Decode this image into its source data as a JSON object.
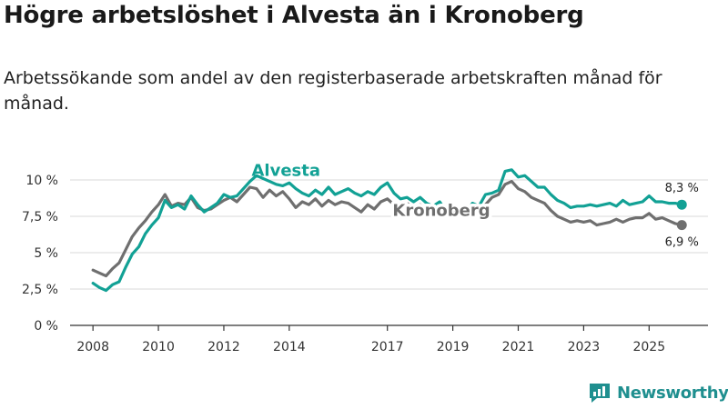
{
  "title": "Högre arbetslöshet i Alvesta än i Kronoberg",
  "subtitle": "Arbetssökande som andel av den registerbaserade arbetskraften månad för månad.",
  "brand": "Newsworthy",
  "colors": {
    "alvesta": "#12a195",
    "kronoberg": "#6f6f6f",
    "grid": "#d9d9d9",
    "axis": "#333333",
    "brand": "#1f8f8f"
  },
  "chart_data": {
    "type": "line",
    "title": "Högre arbetslöshet i Alvesta än i Kronoberg",
    "xlabel": "",
    "ylabel": "",
    "xlim": [
      2007.3,
      2026.8
    ],
    "ylim": [
      0,
      10
    ],
    "y_ticks": [
      0,
      2.5,
      5,
      7.5,
      10
    ],
    "y_tick_labels": [
      "0 %",
      "2,5 %",
      "5 %",
      "7,5 %",
      "10 %"
    ],
    "x_ticks": [
      2008,
      2010,
      2012,
      2014,
      2017,
      2019,
      2021,
      2023,
      2025
    ],
    "x_tick_labels": [
      "2008",
      "2010",
      "2012",
      "2014",
      "2017",
      "2019",
      "2021",
      "2023",
      "2025"
    ],
    "grid": true,
    "series": [
      {
        "name": "Alvesta",
        "end_label": "8,3 %",
        "points": [
          [
            2008.0,
            2.9
          ],
          [
            2008.2,
            2.6
          ],
          [
            2008.4,
            2.4
          ],
          [
            2008.6,
            2.8
          ],
          [
            2008.8,
            3.0
          ],
          [
            2009.0,
            4.0
          ],
          [
            2009.2,
            4.9
          ],
          [
            2009.4,
            5.4
          ],
          [
            2009.6,
            6.3
          ],
          [
            2009.8,
            6.9
          ],
          [
            2010.0,
            7.4
          ],
          [
            2010.2,
            8.6
          ],
          [
            2010.4,
            8.1
          ],
          [
            2010.6,
            8.3
          ],
          [
            2010.8,
            8.0
          ],
          [
            2011.0,
            8.9
          ],
          [
            2011.2,
            8.3
          ],
          [
            2011.4,
            7.8
          ],
          [
            2011.6,
            8.1
          ],
          [
            2011.8,
            8.4
          ],
          [
            2012.0,
            9.0
          ],
          [
            2012.2,
            8.8
          ],
          [
            2012.4,
            8.9
          ],
          [
            2012.6,
            9.4
          ],
          [
            2012.8,
            9.9
          ],
          [
            2013.0,
            10.3
          ],
          [
            2013.2,
            10.1
          ],
          [
            2013.4,
            9.9
          ],
          [
            2013.6,
            9.7
          ],
          [
            2013.8,
            9.6
          ],
          [
            2014.0,
            9.8
          ],
          [
            2014.2,
            9.4
          ],
          [
            2014.4,
            9.1
          ],
          [
            2014.6,
            8.9
          ],
          [
            2014.8,
            9.3
          ],
          [
            2015.0,
            9.0
          ],
          [
            2015.2,
            9.5
          ],
          [
            2015.4,
            9.0
          ],
          [
            2015.6,
            9.2
          ],
          [
            2015.8,
            9.4
          ],
          [
            2016.0,
            9.1
          ],
          [
            2016.2,
            8.9
          ],
          [
            2016.4,
            9.2
          ],
          [
            2016.6,
            9.0
          ],
          [
            2016.8,
            9.5
          ],
          [
            2017.0,
            9.8
          ],
          [
            2017.2,
            9.1
          ],
          [
            2017.4,
            8.7
          ],
          [
            2017.6,
            8.8
          ],
          [
            2017.8,
            8.5
          ],
          [
            2018.0,
            8.8
          ],
          [
            2018.2,
            8.4
          ],
          [
            2018.4,
            8.2
          ],
          [
            2018.6,
            8.5
          ],
          [
            2018.8,
            7.8
          ],
          [
            2019.0,
            7.5
          ],
          [
            2019.2,
            8.0
          ],
          [
            2019.4,
            7.8
          ],
          [
            2019.6,
            8.4
          ],
          [
            2019.8,
            8.2
          ],
          [
            2020.0,
            9.0
          ],
          [
            2020.2,
            9.1
          ],
          [
            2020.4,
            9.3
          ],
          [
            2020.6,
            10.6
          ],
          [
            2020.8,
            10.7
          ],
          [
            2021.0,
            10.2
          ],
          [
            2021.2,
            10.3
          ],
          [
            2021.4,
            9.9
          ],
          [
            2021.6,
            9.5
          ],
          [
            2021.8,
            9.5
          ],
          [
            2022.0,
            9.0
          ],
          [
            2022.2,
            8.6
          ],
          [
            2022.4,
            8.4
          ],
          [
            2022.6,
            8.1
          ],
          [
            2022.8,
            8.2
          ],
          [
            2023.0,
            8.2
          ],
          [
            2023.2,
            8.3
          ],
          [
            2023.4,
            8.2
          ],
          [
            2023.6,
            8.3
          ],
          [
            2023.8,
            8.4
          ],
          [
            2024.0,
            8.2
          ],
          [
            2024.2,
            8.6
          ],
          [
            2024.4,
            8.3
          ],
          [
            2024.6,
            8.4
          ],
          [
            2024.8,
            8.5
          ],
          [
            2025.0,
            8.9
          ],
          [
            2025.2,
            8.5
          ],
          [
            2025.4,
            8.5
          ],
          [
            2025.6,
            8.4
          ],
          [
            2025.8,
            8.4
          ],
          [
            2026.0,
            8.3
          ]
        ]
      },
      {
        "name": "Kronoberg",
        "end_label": "6,9 %",
        "points": [
          [
            2008.0,
            3.8
          ],
          [
            2008.2,
            3.6
          ],
          [
            2008.4,
            3.4
          ],
          [
            2008.6,
            3.9
          ],
          [
            2008.8,
            4.3
          ],
          [
            2009.0,
            5.2
          ],
          [
            2009.2,
            6.1
          ],
          [
            2009.4,
            6.7
          ],
          [
            2009.6,
            7.2
          ],
          [
            2009.8,
            7.8
          ],
          [
            2010.0,
            8.3
          ],
          [
            2010.2,
            9.0
          ],
          [
            2010.4,
            8.2
          ],
          [
            2010.6,
            8.4
          ],
          [
            2010.8,
            8.3
          ],
          [
            2011.0,
            8.8
          ],
          [
            2011.2,
            8.1
          ],
          [
            2011.4,
            7.9
          ],
          [
            2011.6,
            8.0
          ],
          [
            2011.8,
            8.3
          ],
          [
            2012.0,
            8.6
          ],
          [
            2012.2,
            8.8
          ],
          [
            2012.4,
            8.5
          ],
          [
            2012.6,
            9.0
          ],
          [
            2012.8,
            9.5
          ],
          [
            2013.0,
            9.4
          ],
          [
            2013.2,
            8.8
          ],
          [
            2013.4,
            9.3
          ],
          [
            2013.6,
            8.9
          ],
          [
            2013.8,
            9.2
          ],
          [
            2014.0,
            8.7
          ],
          [
            2014.2,
            8.1
          ],
          [
            2014.4,
            8.5
          ],
          [
            2014.6,
            8.3
          ],
          [
            2014.8,
            8.7
          ],
          [
            2015.0,
            8.2
          ],
          [
            2015.2,
            8.6
          ],
          [
            2015.4,
            8.3
          ],
          [
            2015.6,
            8.5
          ],
          [
            2015.8,
            8.4
          ],
          [
            2016.0,
            8.1
          ],
          [
            2016.2,
            7.8
          ],
          [
            2016.4,
            8.3
          ],
          [
            2016.6,
            8.0
          ],
          [
            2016.8,
            8.5
          ],
          [
            2017.0,
            8.7
          ],
          [
            2017.2,
            8.3
          ],
          [
            2017.4,
            8.1
          ],
          [
            2017.6,
            8.4
          ],
          [
            2017.8,
            8.0
          ],
          [
            2018.0,
            8.3
          ],
          [
            2018.2,
            8.0
          ],
          [
            2018.4,
            7.8
          ],
          [
            2018.6,
            8.2
          ],
          [
            2018.8,
            7.9
          ],
          [
            2019.0,
            7.7
          ],
          [
            2019.2,
            7.8
          ],
          [
            2019.4,
            7.7
          ],
          [
            2019.6,
            8.1
          ],
          [
            2019.8,
            8.0
          ],
          [
            2020.0,
            8.3
          ],
          [
            2020.2,
            8.8
          ],
          [
            2020.4,
            9.0
          ],
          [
            2020.6,
            9.7
          ],
          [
            2020.8,
            9.9
          ],
          [
            2021.0,
            9.4
          ],
          [
            2021.2,
            9.2
          ],
          [
            2021.4,
            8.8
          ],
          [
            2021.6,
            8.6
          ],
          [
            2021.8,
            8.4
          ],
          [
            2022.0,
            7.9
          ],
          [
            2022.2,
            7.5
          ],
          [
            2022.4,
            7.3
          ],
          [
            2022.6,
            7.1
          ],
          [
            2022.8,
            7.2
          ],
          [
            2023.0,
            7.1
          ],
          [
            2023.2,
            7.2
          ],
          [
            2023.4,
            6.9
          ],
          [
            2023.6,
            7.0
          ],
          [
            2023.8,
            7.1
          ],
          [
            2024.0,
            7.3
          ],
          [
            2024.2,
            7.1
          ],
          [
            2024.4,
            7.3
          ],
          [
            2024.6,
            7.4
          ],
          [
            2024.8,
            7.4
          ],
          [
            2025.0,
            7.7
          ],
          [
            2025.2,
            7.3
          ],
          [
            2025.4,
            7.4
          ],
          [
            2025.6,
            7.2
          ],
          [
            2025.8,
            7.0
          ],
          [
            2026.0,
            6.9
          ]
        ]
      }
    ]
  }
}
